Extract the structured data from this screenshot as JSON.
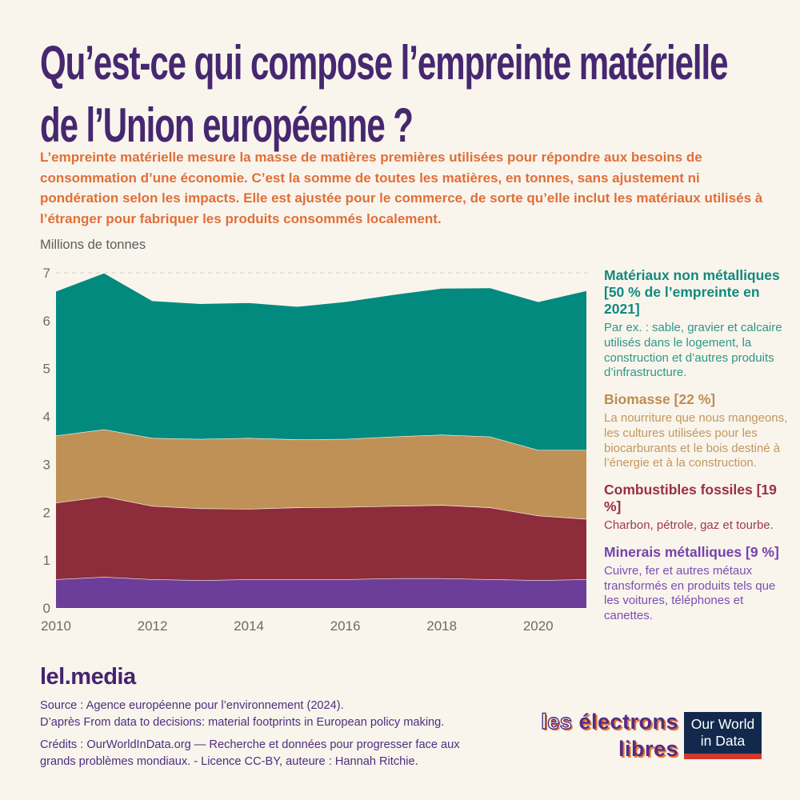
{
  "header": {
    "title": "Qu’est-ce qui compose l’empreinte matérielle de l’Union européenne ?",
    "subtitle": "L’empreinte matérielle mesure la masse de matières premières utilisées pour répondre aux besoins de consommation d’une économie. C’est la somme de toutes les matières, en tonnes, sans ajustement ni pondération selon les impacts. Elle est ajustée pour le commerce, de sorte qu’elle inclut les matériaux utilisés à l’étranger pour fabriquer les produits consommés localement."
  },
  "chart_data": {
    "type": "area",
    "stacked": true,
    "title": "Empreinte matérielle de l'Union européenne par type de matière",
    "ylabel": "Millions de tonnes",
    "xlabel": "",
    "x": [
      2010,
      2011,
      2012,
      2013,
      2014,
      2015,
      2016,
      2017,
      2018,
      2019,
      2020,
      2021
    ],
    "xticks": [
      2010,
      2012,
      2014,
      2016,
      2018,
      2020
    ],
    "ylim": [
      0,
      7
    ],
    "yticks": [
      0,
      1,
      2,
      3,
      4,
      5,
      6,
      7
    ],
    "grid": "dashed line at y=7 only",
    "legend_position": "right",
    "separator_color": "#f9f5ec",
    "gridline_color": "#d9d5ca",
    "tick_label_color": "#6b6b6b",
    "series": [
      {
        "name": "Minerais métalliques",
        "share_2021": "9 %",
        "color": "#6c3e99",
        "values": [
          0.6,
          0.65,
          0.6,
          0.58,
          0.6,
          0.6,
          0.6,
          0.62,
          0.62,
          0.6,
          0.58,
          0.6
        ]
      },
      {
        "name": "Combustibles fossiles",
        "share_2021": "19 %",
        "color": "#8d2c3a",
        "values": [
          1.6,
          1.68,
          1.53,
          1.5,
          1.47,
          1.5,
          1.51,
          1.51,
          1.53,
          1.5,
          1.35,
          1.26
        ]
      },
      {
        "name": "Biomasse",
        "share_2021": "22 %",
        "color": "#bf9157",
        "values": [
          1.4,
          1.4,
          1.42,
          1.45,
          1.48,
          1.42,
          1.42,
          1.45,
          1.47,
          1.48,
          1.37,
          1.44
        ]
      },
      {
        "name": "Matériaux non métalliques",
        "share_2021": "50 %",
        "color": "#038a7f",
        "values": [
          3.02,
          3.27,
          2.87,
          2.83,
          2.83,
          2.78,
          2.87,
          2.97,
          3.06,
          3.11,
          3.1,
          3.33
        ]
      }
    ],
    "totals": [
      6.62,
      7.0,
      6.42,
      6.36,
      6.38,
      6.3,
      6.4,
      6.55,
      6.68,
      6.69,
      6.4,
      6.63
    ]
  },
  "chart": {
    "unit_label": "Millions de tonnes"
  },
  "legend": {
    "blocks": [
      {
        "heading": "Matériaux non métalliques [50 % de l’empreinte en 2021]",
        "body": "Par ex. : sable, gravier et calcaire utilisés dans le logement, la construction et d’autres produits d’infrastructure.",
        "heading_color": "#12897e",
        "body_color": "#2e9688"
      },
      {
        "heading": "Biomasse [22 %]",
        "body": "La nourriture que nous mangeons, les cultures utilisées pour les biocarburants et le bois destiné à l’énergie et à la construction.",
        "heading_color": "#bd8d53",
        "body_color": "#c2975f"
      },
      {
        "heading": "Combustibles fossiles [19 %]",
        "body": "Charbon, pétrole, gaz et tourbe.",
        "heading_color": "#9b2f44",
        "body_color": "#a03a4d"
      },
      {
        "heading": "Minerais métalliques [9 %]",
        "body": "Cuivre, fer et autres métaux transformés en produits tels que les voitures, téléphones et canettes.",
        "heading_color": "#7642ad",
        "body_color": "#7d4cb3"
      }
    ]
  },
  "footer": {
    "brand": "lel.media",
    "source_lines": [
      "Source : Agence européenne pour l’environnement (2024).",
      "D’après From data to decisions: material footprints in European policy making."
    ],
    "credit_lines": [
      "Crédits : OurWorldInData.org — Recherche et données pour progresser face aux",
      "grands problèmes mondiaux. - Licence CC-BY, auteure : Hannah Ritchie."
    ]
  },
  "logos": {
    "electrons_libres": {
      "word1": "les",
      "word2": "électrons",
      "word3": "libres",
      "purple": "#522d87",
      "orange": "#e8742e"
    },
    "owid": {
      "line1": "Our World",
      "line2": "in Data",
      "navy": "#12294d",
      "red": "#d13a2c"
    }
  },
  "colors": {
    "background": "#f9f5ec",
    "title": "#462770",
    "subtitle": "#e06f3a",
    "footer_text": "#4f2d80"
  }
}
